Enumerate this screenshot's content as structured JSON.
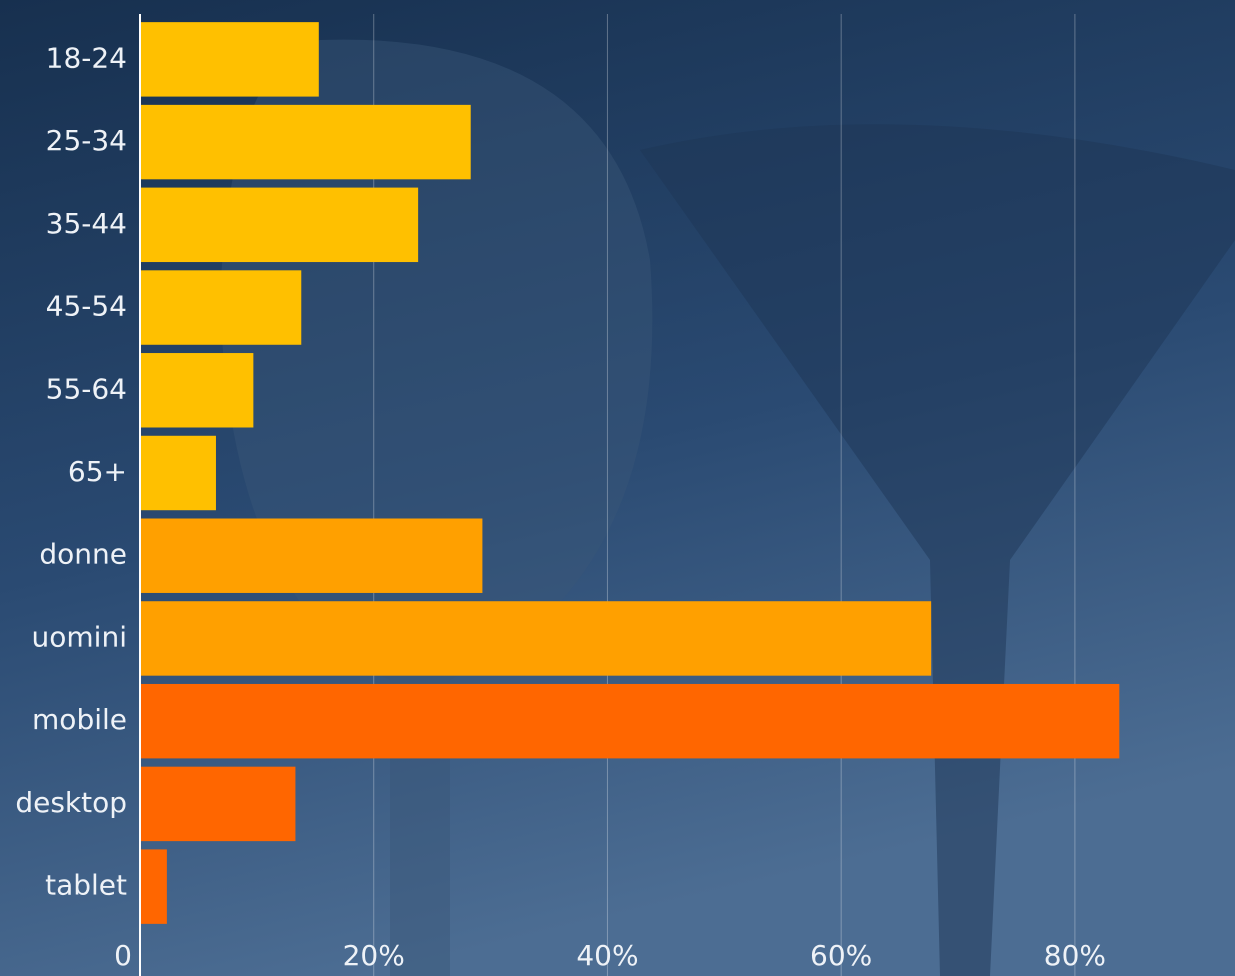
{
  "chart_data": {
    "type": "bar",
    "orientation": "horizontal",
    "categories": [
      "18-24",
      "25-34",
      "35-44",
      "45-54",
      "55-64",
      "65+",
      "donne",
      "uomini",
      "mobile",
      "desktop",
      "tablet"
    ],
    "values": [
      15.3,
      28.3,
      23.8,
      13.8,
      9.7,
      6.5,
      29.3,
      67.7,
      83.8,
      13.3,
      2.3
    ],
    "colors": [
      "#ffc000",
      "#ffc000",
      "#ffc000",
      "#ffc000",
      "#ffc000",
      "#ffc000",
      "#ffa000",
      "#ffa000",
      "#ff6600",
      "#ff6600",
      "#ff6600"
    ],
    "xlim": [
      0,
      93.7
    ],
    "xticks": [
      0,
      {
        "value": 20,
        "label": "20%"
      },
      {
        "value": 40,
        "label": "40%"
      },
      {
        "value": 60,
        "label": "60%"
      },
      {
        "value": 80,
        "label": "80%"
      }
    ],
    "grid": true
  }
}
